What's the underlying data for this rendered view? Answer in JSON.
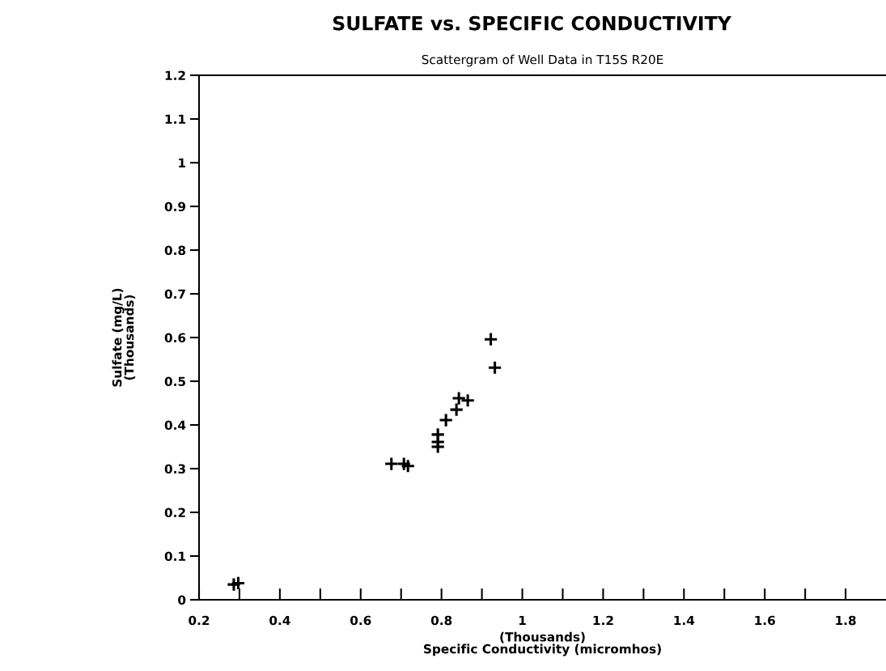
{
  "chart_data": {
    "type": "scatter",
    "title": "SULFATE vs. SPECIFIC CONDUCTIVITY",
    "subtitle": "Scattergram of Well Data in T15S R20E",
    "xlabel": "(Thousands)\nSpecific Conductivity (micromhos)",
    "ylabel": "Sulfate (mg/L)\n(Thousands)",
    "x": [
      0.286,
      0.297,
      0.676,
      0.707,
      0.717,
      0.791,
      0.791,
      0.791,
      0.811,
      0.837,
      0.843,
      0.865,
      0.922,
      0.932
    ],
    "values": [
      0.035,
      0.038,
      0.311,
      0.311,
      0.306,
      0.378,
      0.361,
      0.35,
      0.411,
      0.435,
      0.461,
      0.456,
      0.596,
      0.531
    ],
    "color": "#000000",
    "marker": "cross",
    "grid": false,
    "legend": false,
    "xlim": [
      0.2,
      1.9
    ],
    "ylim": [
      0,
      1.2
    ],
    "xticks": [
      0.2,
      {
        "value": 0.3,
        "label": null
      },
      0.4,
      {
        "value": 0.5,
        "label": null
      },
      0.6,
      {
        "value": 0.7,
        "label": null
      },
      0.8,
      {
        "value": 0.9,
        "label": null
      },
      1,
      {
        "value": 1.1,
        "label": null
      },
      1.2,
      {
        "value": 1.3,
        "label": null
      },
      1.4,
      {
        "value": 1.5,
        "label": null
      },
      1.6,
      {
        "value": 1.7,
        "label": null
      },
      1.8
    ],
    "yticks": [
      0,
      0.1,
      0.2,
      0.3,
      0.4,
      0.5,
      0.6,
      0.7,
      0.8,
      0.9,
      1,
      1.1,
      1.2
    ]
  }
}
